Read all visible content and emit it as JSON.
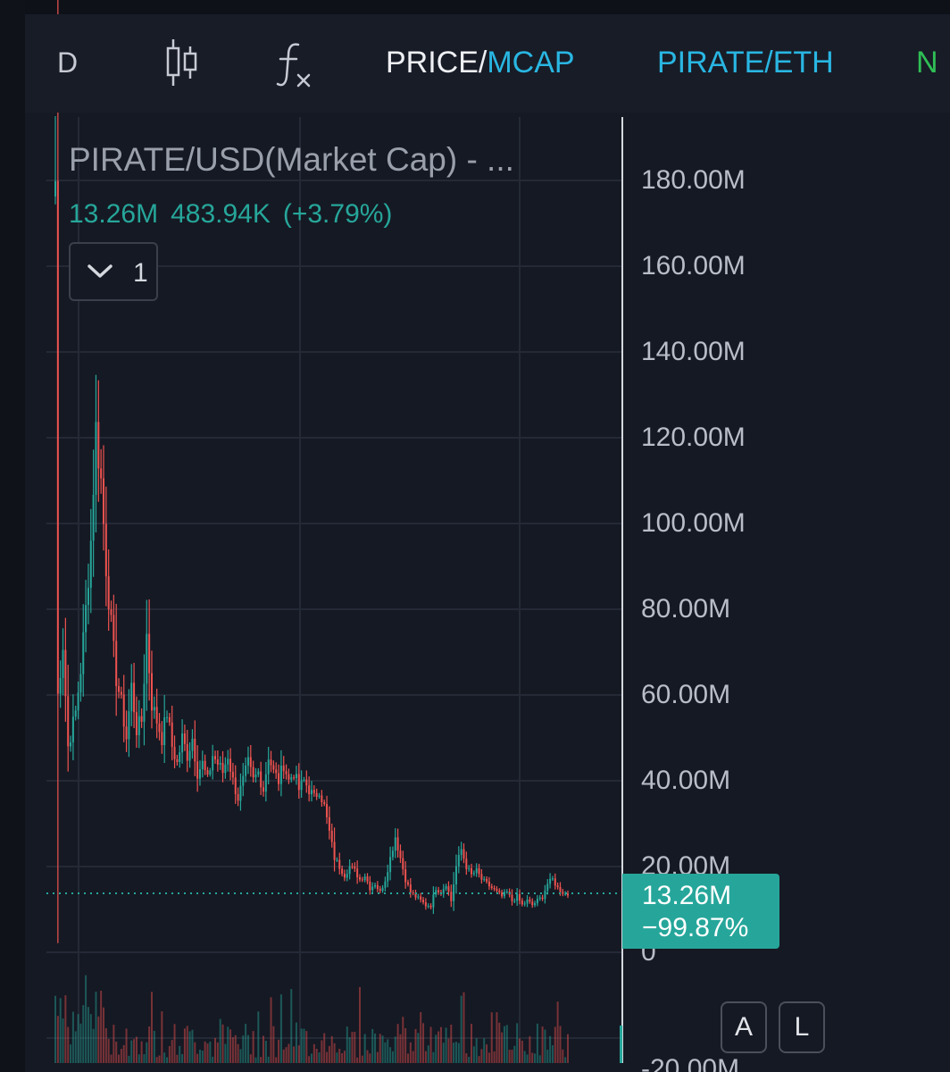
{
  "toolbar": {
    "interval": "D",
    "candle_icon": "candlestick-icon",
    "indicator_icon": "fx-icon",
    "price_label": "PRICE/",
    "mcap_label": "MCAP",
    "pair_label": "PIRATE/ETH",
    "next_tab": "N"
  },
  "legend": {
    "title": "PIRATE/USD(Market Cap) - ...",
    "value": "13.26M",
    "change": "483.94K",
    "change_pct": "(+3.79%)",
    "indicator_count": "1"
  },
  "y_axis": {
    "ticks": [
      "180.00M",
      "160.00M",
      "140.00M",
      "120.00M",
      "100.00M",
      "80.00M",
      "60.00M",
      "40.00M",
      "20.00M",
      "0",
      "-20.00M"
    ]
  },
  "last_price": {
    "value": "13.26M",
    "change": "−99.87%"
  },
  "scale_buttons": {
    "auto": "A",
    "log": "L"
  },
  "colors": {
    "up": "#26a69a",
    "down": "#ef5350",
    "link": "#29b6e2",
    "background": "#151923"
  },
  "chart_data": {
    "type": "candlestick",
    "y_unit": "market cap (USD)",
    "ylim": [
      -20,
      195
    ],
    "last_value": 13.26,
    "anchors": [
      [
        0,
        180
      ],
      [
        1,
        60
      ],
      [
        3,
        72
      ],
      [
        5,
        48
      ],
      [
        8,
        56
      ],
      [
        10,
        66
      ],
      [
        12,
        80
      ],
      [
        14,
        96
      ],
      [
        16,
        122
      ],
      [
        18,
        110
      ],
      [
        20,
        90
      ],
      [
        22,
        76
      ],
      [
        24,
        64
      ],
      [
        26,
        58
      ],
      [
        28,
        50
      ],
      [
        30,
        62
      ],
      [
        32,
        52
      ],
      [
        34,
        54
      ],
      [
        36,
        74
      ],
      [
        38,
        58
      ],
      [
        40,
        54
      ],
      [
        42,
        50
      ],
      [
        44,
        56
      ],
      [
        46,
        48
      ],
      [
        48,
        44
      ],
      [
        50,
        50
      ],
      [
        52,
        46
      ],
      [
        54,
        50
      ],
      [
        56,
        42
      ],
      [
        58,
        44
      ],
      [
        60,
        40
      ],
      [
        62,
        46
      ],
      [
        64,
        44
      ],
      [
        66,
        42
      ],
      [
        68,
        46
      ],
      [
        70,
        40
      ],
      [
        72,
        36
      ],
      [
        74,
        40
      ],
      [
        76,
        44
      ],
      [
        78,
        40
      ],
      [
        80,
        42
      ],
      [
        82,
        38
      ],
      [
        84,
        46
      ],
      [
        86,
        42
      ],
      [
        88,
        40
      ],
      [
        90,
        44
      ],
      [
        92,
        40
      ],
      [
        94,
        42
      ],
      [
        96,
        38
      ],
      [
        98,
        40
      ],
      [
        100,
        38
      ],
      [
        102,
        36
      ],
      [
        104,
        38
      ],
      [
        106,
        34
      ],
      [
        108,
        28
      ],
      [
        110,
        22
      ],
      [
        112,
        20
      ],
      [
        114,
        18
      ],
      [
        116,
        20
      ],
      [
        118,
        19
      ],
      [
        120,
        17
      ],
      [
        122,
        18
      ],
      [
        124,
        15
      ],
      [
        126,
        16
      ],
      [
        128,
        14
      ],
      [
        130,
        17
      ],
      [
        132,
        22
      ],
      [
        134,
        27
      ],
      [
        136,
        22
      ],
      [
        138,
        17
      ],
      [
        140,
        14
      ],
      [
        142,
        13
      ],
      [
        144,
        12
      ],
      [
        146,
        11
      ],
      [
        148,
        11
      ],
      [
        150,
        15
      ],
      [
        152,
        14
      ],
      [
        154,
        16
      ],
      [
        156,
        12
      ],
      [
        158,
        20
      ],
      [
        160,
        24
      ],
      [
        162,
        20
      ],
      [
        164,
        18
      ],
      [
        166,
        19
      ],
      [
        168,
        17
      ],
      [
        170,
        16
      ],
      [
        172,
        15
      ],
      [
        174,
        14
      ],
      [
        176,
        13
      ],
      [
        178,
        14
      ],
      [
        180,
        12
      ],
      [
        182,
        13
      ],
      [
        184,
        11
      ],
      [
        186,
        12
      ],
      [
        188,
        11
      ],
      [
        190,
        12
      ],
      [
        192,
        13
      ],
      [
        194,
        16
      ],
      [
        196,
        17
      ],
      [
        198,
        15
      ],
      [
        200,
        14
      ],
      [
        202,
        13.26
      ]
    ]
  }
}
